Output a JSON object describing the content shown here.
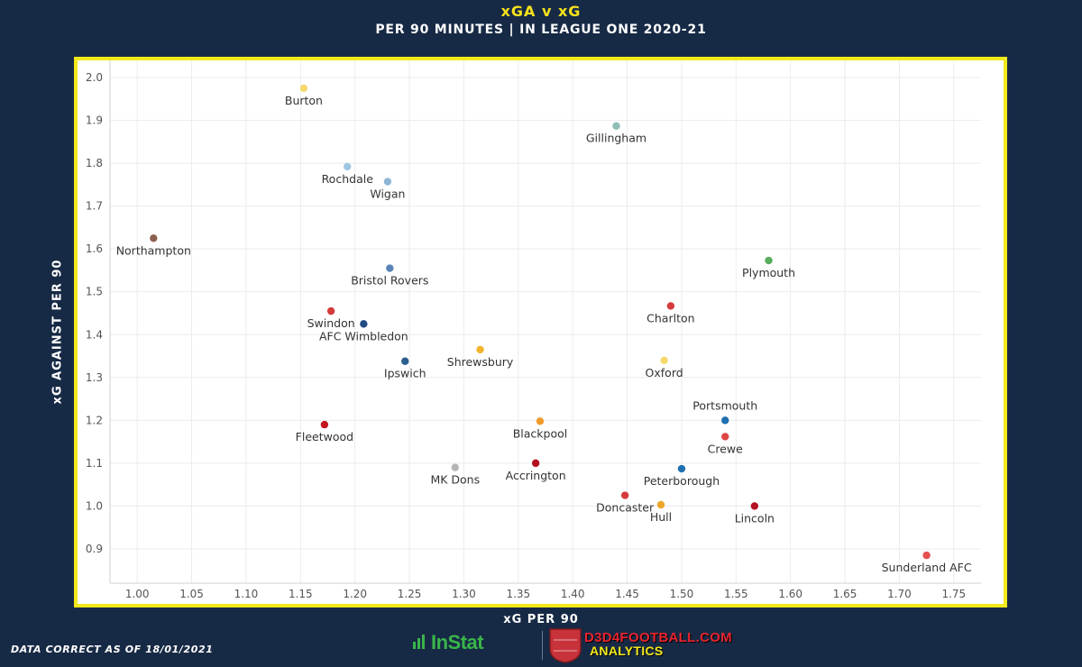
{
  "header": {
    "title": "xGA v xG",
    "subtitle": "PER 90 MINUTES | IN LEAGUE ONE 2020-21"
  },
  "footer": {
    "note": "DATA CORRECT AS OF 18/01/2021",
    "logo_instat": "InStat",
    "logo_d3_line1": "D3D4FOOTBALL.COM",
    "logo_d3_line2": "ANALYTICS",
    "logo_d3_badge": "D3D4 FOOTBALL"
  },
  "colors": {
    "background": "#172a45",
    "frame": "#f2e81b",
    "title": "#f5e21b"
  },
  "chart_data": {
    "type": "scatter",
    "xlabel": "xG PER 90",
    "ylabel": "xG AGAINST PER 90",
    "xlim": [
      0.975,
      1.775
    ],
    "ylim": [
      0.82,
      2.04
    ],
    "xticks": [
      "1.00",
      "1.05",
      "1.10",
      "1.15",
      "1.20",
      "1.25",
      "1.30",
      "1.35",
      "1.40",
      "1.45",
      "1.50",
      "1.55",
      "1.60",
      "1.65",
      "1.70",
      "1.75"
    ],
    "yticks": [
      "0.9",
      "1.0",
      "1.1",
      "1.2",
      "1.3",
      "1.4",
      "1.5",
      "1.6",
      "1.7",
      "1.8",
      "1.9",
      "2.0"
    ],
    "grid": true,
    "points": [
      {
        "team": "Burton",
        "x": 1.153,
        "y": 1.975,
        "color": "#f6d96e",
        "label_pos": "below"
      },
      {
        "team": "Gillingham",
        "x": 1.44,
        "y": 1.887,
        "color": "#8fbfb6",
        "label_pos": "below"
      },
      {
        "team": "Rochdale",
        "x": 1.193,
        "y": 1.792,
        "color": "#9ec7e2",
        "label_pos": "below"
      },
      {
        "team": "Wigan",
        "x": 1.23,
        "y": 1.757,
        "color": "#8cb5d6",
        "label_pos": "below"
      },
      {
        "team": "Northampton",
        "x": 1.015,
        "y": 1.625,
        "color": "#8c5f4e",
        "label_pos": "below"
      },
      {
        "team": "Plymouth",
        "x": 1.58,
        "y": 1.573,
        "color": "#55ad5d",
        "label_pos": "below"
      },
      {
        "team": "Bristol Rovers",
        "x": 1.232,
        "y": 1.555,
        "color": "#5a83b6",
        "label_pos": "below"
      },
      {
        "team": "Charlton",
        "x": 1.49,
        "y": 1.467,
        "color": "#d63b3b",
        "label_pos": "below"
      },
      {
        "team": "Swindon",
        "x": 1.178,
        "y": 1.455,
        "color": "#d63b3b",
        "label_pos": "below"
      },
      {
        "team": "AFC Wimbledon",
        "x": 1.208,
        "y": 1.425,
        "color": "#1f4b82",
        "label_pos": "below"
      },
      {
        "team": "Shrewsbury",
        "x": 1.315,
        "y": 1.365,
        "color": "#f3b52b",
        "label_pos": "below"
      },
      {
        "team": "Oxford",
        "x": 1.484,
        "y": 1.34,
        "color": "#f6d96e",
        "label_pos": "below"
      },
      {
        "team": "Ipswich",
        "x": 1.246,
        "y": 1.338,
        "color": "#2d5f8f",
        "label_pos": "below"
      },
      {
        "team": "Portsmouth",
        "x": 1.54,
        "y": 1.2,
        "color": "#1e6fb0",
        "label_pos": "above"
      },
      {
        "team": "Blackpool",
        "x": 1.37,
        "y": 1.198,
        "color": "#ef9b2c",
        "label_pos": "below"
      },
      {
        "team": "Fleetwood",
        "x": 1.172,
        "y": 1.19,
        "color": "#c4141e",
        "label_pos": "below"
      },
      {
        "team": "Crewe",
        "x": 1.54,
        "y": 1.162,
        "color": "#e04545",
        "label_pos": "below"
      },
      {
        "team": "MK Dons",
        "x": 1.292,
        "y": 1.09,
        "color": "#b6b6b6",
        "label_pos": "below"
      },
      {
        "team": "Accrington",
        "x": 1.366,
        "y": 1.1,
        "color": "#b5101f",
        "label_pos": "below"
      },
      {
        "team": "Peterborough",
        "x": 1.5,
        "y": 1.087,
        "color": "#1e6fb0",
        "label_pos": "below"
      },
      {
        "team": "Doncaster",
        "x": 1.448,
        "y": 1.025,
        "color": "#d63b3b",
        "label_pos": "below"
      },
      {
        "team": "Hull",
        "x": 1.481,
        "y": 1.003,
        "color": "#eca62a",
        "label_pos": "below"
      },
      {
        "team": "Lincoln",
        "x": 1.567,
        "y": 1.0,
        "color": "#b5101f",
        "label_pos": "below"
      },
      {
        "team": "Sunderland AFC",
        "x": 1.725,
        "y": 0.885,
        "color": "#e65050",
        "label_pos": "below"
      }
    ]
  }
}
